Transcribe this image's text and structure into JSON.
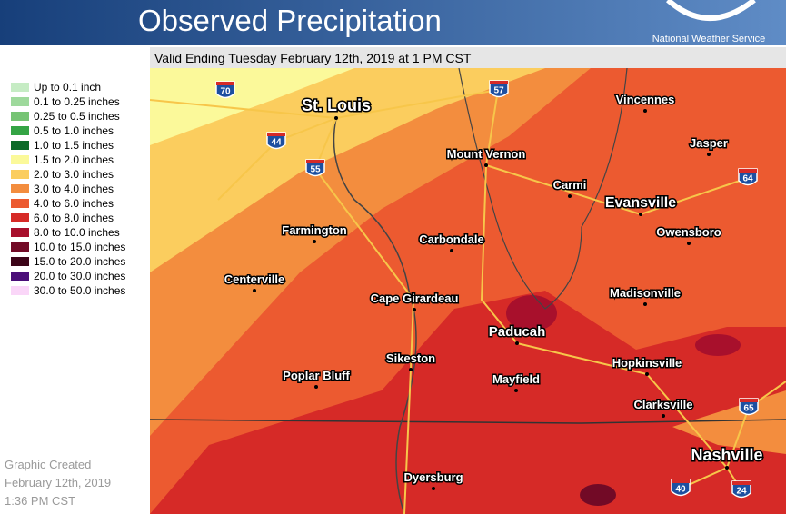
{
  "header": {
    "title": "Observed Precipitation",
    "agency": "National Weather Service"
  },
  "subtitle": "Valid Ending Tuesday February 12th, 2019 at 1 PM CST",
  "legend": [
    {
      "label": "Up to 0.1 inch",
      "color": "#c6ecc4"
    },
    {
      "label": "0.1 to 0.25 inches",
      "color": "#9ed99c"
    },
    {
      "label": "0.25 to 0.5 inches",
      "color": "#76c474"
    },
    {
      "label": "0.5 to 1.0 inches",
      "color": "#34a444"
    },
    {
      "label": "1.0 to 1.5 inches",
      "color": "#0c6a28"
    },
    {
      "label": "1.5 to 2.0 inches",
      "color": "#fbf99a"
    },
    {
      "label": "2.0 to 3.0 inches",
      "color": "#fbcd5e"
    },
    {
      "label": "3.0 to 4.0 inches",
      "color": "#f38d3e"
    },
    {
      "label": "4.0 to 6.0 inches",
      "color": "#ec5a30"
    },
    {
      "label": "6.0 to 8.0 inches",
      "color": "#d62a27"
    },
    {
      "label": "8.0 to 10.0 inches",
      "color": "#a8102c"
    },
    {
      "label": "10.0 to 15.0 inches",
      "color": "#720a26"
    },
    {
      "label": "15.0 to 20.0 inches",
      "color": "#3c0418"
    },
    {
      "label": "20.0 to 30.0 inches",
      "color": "#4a0e78"
    },
    {
      "label": "30.0 to 50.0 inches",
      "color": "#fad6f8"
    }
  ],
  "footer": [
    "Graphic Created",
    "February 12th, 2019",
    "1:36 PM CST"
  ],
  "cities": [
    "St. Louis",
    "Vincennes",
    "Mount Vernon",
    "Jasper",
    "Carmi",
    "Evansville",
    "Owensboro",
    "Farmington",
    "Carbondale",
    "Centerville",
    "Cape Girardeau",
    "Madisonville",
    "Paducah",
    "Sikeston",
    "Hopkinsville",
    "Poplar Bluff",
    "Mayfield",
    "Clarksville",
    "Nashville",
    "Dyersburg"
  ],
  "interstates": [
    "70",
    "57",
    "44",
    "55",
    "64",
    "65",
    "40",
    "24"
  ]
}
